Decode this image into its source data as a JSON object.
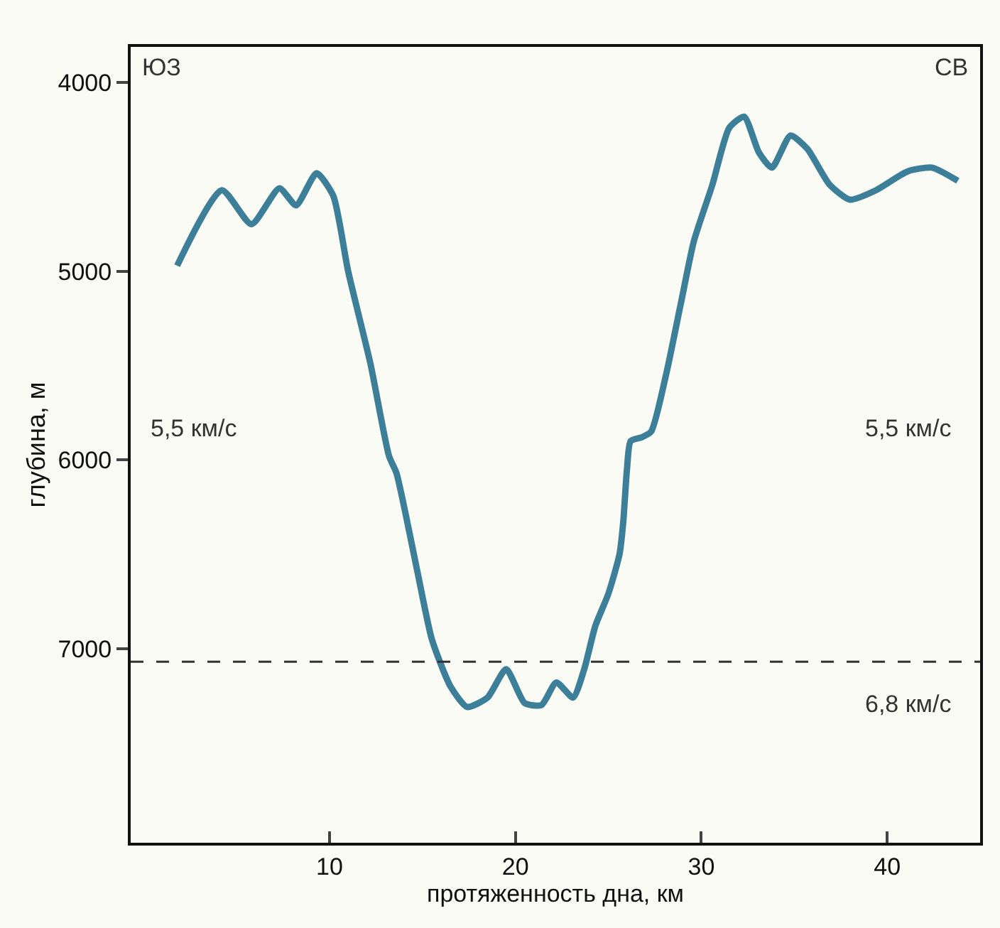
{
  "chart_data": {
    "type": "line",
    "xlabel": "протяженность дна, км",
    "ylabel": "глубина, м",
    "x": [
      1.8,
      4.2,
      5.8,
      7.3,
      8.2,
      9.3,
      10.2,
      11.0,
      12.2,
      13.2,
      13.6,
      14.7,
      15.5,
      16.5,
      17.4,
      18.5,
      19.5,
      20.5,
      21.4,
      22.2,
      23.1,
      23.7,
      24.3,
      25.0,
      25.6,
      25.8,
      26.0,
      26.2,
      26.8,
      27.3,
      28.1,
      28.9,
      29.6,
      30.6,
      31.5,
      32.3,
      33.1,
      33.8,
      34.8,
      35.7,
      36.9,
      38.0,
      39.4,
      41.1,
      42.4,
      43.8
    ],
    "series": [
      {
        "color": "#3d7f99",
        "values": [
          4970,
          4570,
          4750,
          4560,
          4650,
          4480,
          4600,
          5000,
          5490,
          5980,
          6070,
          6580,
          6950,
          7200,
          7310,
          7260,
          7110,
          7290,
          7300,
          7180,
          7260,
          7110,
          6880,
          6710,
          6500,
          6330,
          6050,
          5900,
          5880,
          5850,
          5550,
          5170,
          4840,
          4540,
          4240,
          4180,
          4370,
          4450,
          4280,
          4350,
          4540,
          4620,
          4570,
          4470,
          4450,
          4520
        ]
      }
    ],
    "xlim": [
      -0.7,
      45.0
    ],
    "ylim": [
      8030,
      3810
    ],
    "xticks": [
      10,
      20,
      30,
      40
    ],
    "yticks": [
      4000,
      5000,
      6000,
      7000
    ],
    "ref_lines": [
      {
        "axis": "y",
        "value": 7070,
        "color": "#333333",
        "line_style": "dashed"
      }
    ],
    "annotations": [
      "ЮЗ",
      "СВ",
      "5,5 км/с",
      "5,5 км/с",
      "6,8 км/с"
    ],
    "grid": false,
    "line_style": "solid"
  }
}
